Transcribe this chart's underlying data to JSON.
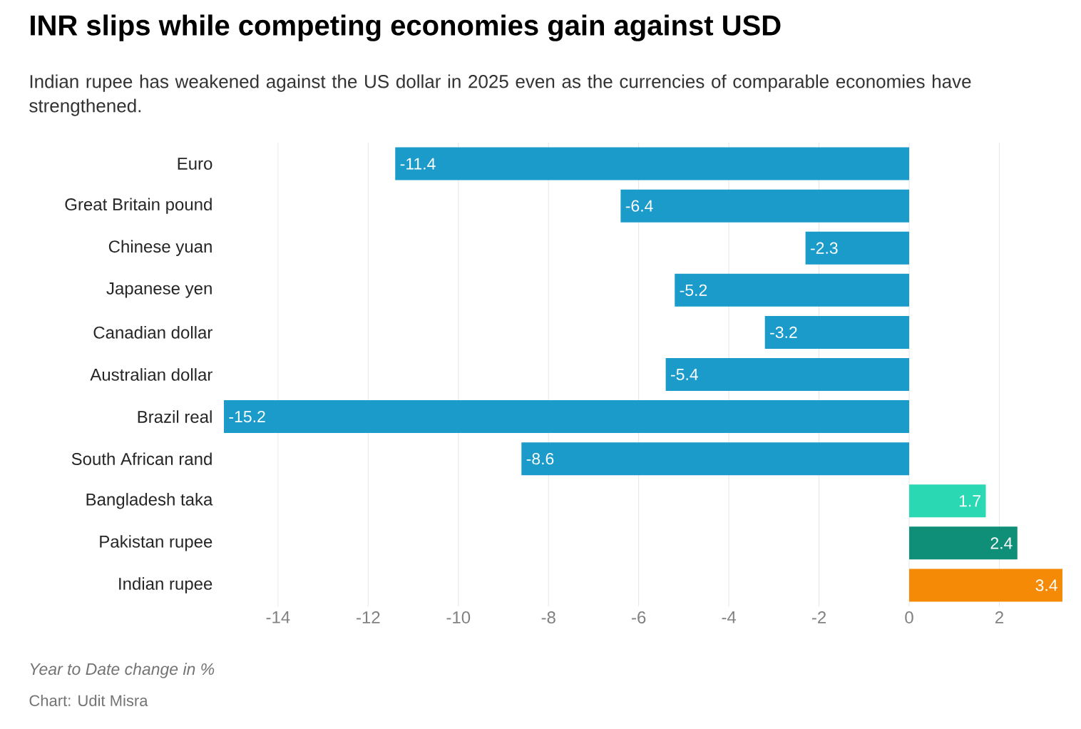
{
  "chart_data": {
    "type": "bar",
    "orientation": "horizontal",
    "title": "INR slips while competing economies gain against USD",
    "subtitle": "Indian rupee has weakened against the US dollar in 2025 even as the currencies of comparable economies have strengthened.",
    "categories": [
      "Euro",
      "Great Britain pound",
      "Chinese yuan",
      "Japanese yen",
      "Canadian dollar",
      "Australian dollar",
      "Brazil real",
      "South African rand",
      "Bangladesh taka",
      "Pakistan rupee",
      "Indian rupee"
    ],
    "values": [
      -11.4,
      -6.4,
      -2.3,
      -5.2,
      -3.2,
      -5.4,
      -15.2,
      -8.6,
      1.7,
      2.4,
      3.4
    ],
    "colors": [
      "#1a9bc9",
      "#1a9bc9",
      "#1a9bc9",
      "#1a9bc9",
      "#1a9bc9",
      "#1a9bc9",
      "#1a9bc9",
      "#1a9bc9",
      "#2ad8b4",
      "#0f8f78",
      "#f58a07"
    ],
    "xlim": [
      -15.2,
      3.4
    ],
    "xticks": [
      -14,
      -12,
      -10,
      -8,
      -6,
      -4,
      -2,
      0,
      2
    ],
    "grid": "x",
    "data_labels": true,
    "annotations": [
      "Year to Date change in %",
      "Chart: Udit Misra"
    ]
  }
}
